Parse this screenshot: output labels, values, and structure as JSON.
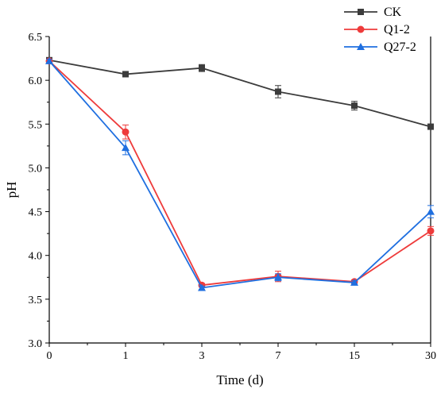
{
  "chart_data": {
    "type": "line",
    "categories": [
      "0",
      "1",
      "3",
      "7",
      "15",
      "30"
    ],
    "xlabel": "Time (d)",
    "ylabel": "pH",
    "ylim": [
      3.0,
      6.5
    ],
    "yticks": [
      "3.0",
      "3.5",
      "4.0",
      "4.5",
      "5.0",
      "5.5",
      "6.0",
      "6.5"
    ],
    "grid": false,
    "legend_position": "top-right",
    "series": [
      {
        "name": "CK",
        "color": "#3c3c3c",
        "marker": "square",
        "values": [
          6.23,
          6.07,
          6.14,
          5.87,
          5.71,
          5.47
        ],
        "errors": [
          0.02,
          0.03,
          0.04,
          0.07,
          0.05,
          0.03
        ]
      },
      {
        "name": "Q1-2",
        "color": "#ee3b3b",
        "marker": "circle",
        "values": [
          6.22,
          5.41,
          3.66,
          3.76,
          3.7,
          4.28
        ],
        "errors": [
          0.02,
          0.08,
          0.02,
          0.06,
          0.02,
          0.05
        ]
      },
      {
        "name": "Q27-2",
        "color": "#1f6fe0",
        "marker": "triangle",
        "values": [
          6.22,
          5.23,
          3.63,
          3.75,
          3.69,
          4.5
        ],
        "errors": [
          0.02,
          0.08,
          0.02,
          0.04,
          0.02,
          0.07
        ]
      }
    ]
  }
}
